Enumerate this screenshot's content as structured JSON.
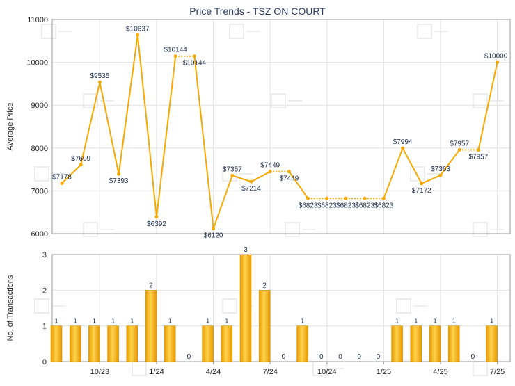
{
  "chart_data": [
    {
      "type": "line",
      "title": "Price Trends - TSZ ON COURT",
      "ylabel": "Average Price",
      "ylim": [
        6000,
        11000
      ],
      "yticks": [
        6000,
        7000,
        8000,
        9000,
        10000,
        11000
      ],
      "grid": true,
      "color": "#f5a800",
      "xticks": [
        "10/23",
        "1/24",
        "4/24",
        "7/24",
        "10/24",
        "1/25",
        "4/25",
        "7/25"
      ],
      "labels": [
        "$7178",
        "$7609",
        "$9535",
        "$7393",
        "$10637",
        "$6392",
        "$10144",
        "$10144",
        "$6120",
        "$7357",
        "$7214",
        "$7449",
        "$7449",
        "$6823",
        "$6823",
        "$6823",
        "$6823",
        "$6823",
        "$7994",
        "$7172",
        "$7363",
        "$7957",
        "$7957",
        "$10000"
      ],
      "values": [
        7178,
        7609,
        9535,
        7393,
        10637,
        6392,
        10144,
        10144,
        6120,
        7357,
        7214,
        7449,
        7449,
        6823,
        6823,
        6823,
        6823,
        6823,
        7994,
        7172,
        7363,
        7957,
        7957,
        10000
      ],
      "carried_forward": [
        false,
        false,
        false,
        false,
        false,
        false,
        false,
        true,
        false,
        false,
        false,
        false,
        true,
        false,
        true,
        true,
        true,
        true,
        false,
        false,
        false,
        false,
        true,
        false
      ]
    },
    {
      "type": "bar",
      "ylabel": "No. of Transactions",
      "ylim": [
        0,
        3
      ],
      "yticks": [
        0,
        1,
        2,
        3
      ],
      "grid": true,
      "color": "#f5a800",
      "xticks": [
        "10/23",
        "1/24",
        "4/24",
        "7/24",
        "10/24",
        "1/25",
        "4/25",
        "7/25"
      ],
      "values": [
        1,
        1,
        1,
        1,
        1,
        2,
        1,
        0,
        1,
        1,
        3,
        2,
        0,
        1,
        0,
        0,
        0,
        0,
        1,
        1,
        1,
        1,
        0,
        1
      ]
    }
  ]
}
